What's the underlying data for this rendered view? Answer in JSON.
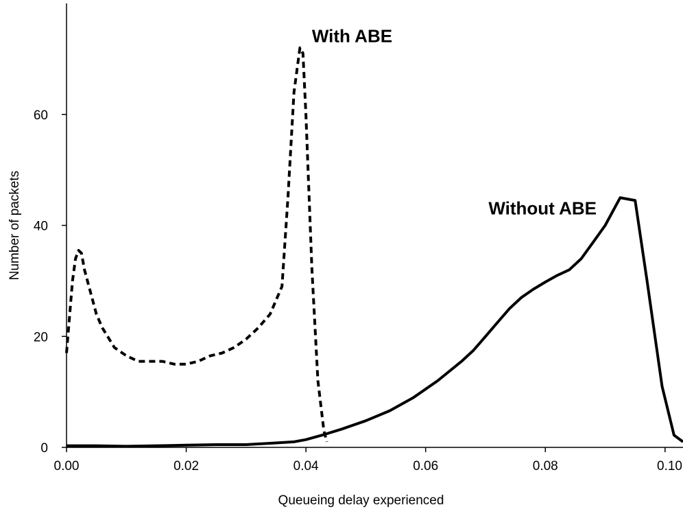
{
  "chart_data": {
    "type": "line",
    "title": "",
    "xlabel": "Queueing delay experienced",
    "ylabel": "Number of packets",
    "xlim": [
      0.0,
      0.103
    ],
    "ylim": [
      0,
      80
    ],
    "x_ticks": [
      0.0,
      0.02,
      0.04,
      0.06,
      0.08,
      0.1
    ],
    "x_tick_labels": [
      "0.00",
      "0.02",
      "0.04",
      "0.06",
      "0.08",
      "0.10"
    ],
    "y_ticks": [
      0,
      20,
      40,
      60
    ],
    "y_tick_labels": [
      "0",
      "20",
      "40",
      "60"
    ],
    "grid": false,
    "legend": "none",
    "series": [
      {
        "name": "With ABE",
        "line_style": "dashed",
        "color": "#000000",
        "x": [
          0.0,
          0.001,
          0.0015,
          0.002,
          0.0025,
          0.003,
          0.004,
          0.005,
          0.006,
          0.008,
          0.01,
          0.012,
          0.014,
          0.016,
          0.018,
          0.02,
          0.022,
          0.024,
          0.026,
          0.028,
          0.03,
          0.032,
          0.034,
          0.036,
          0.037,
          0.038,
          0.039,
          0.0395,
          0.04,
          0.041,
          0.042,
          0.043,
          0.0435
        ],
        "y": [
          17,
          30,
          34,
          35.5,
          35,
          32,
          28,
          24,
          21.5,
          18,
          16.5,
          15.5,
          15.5,
          15.5,
          15,
          15,
          15.5,
          16.5,
          17,
          18,
          19.5,
          21.5,
          24,
          29,
          45,
          64,
          72,
          71,
          60,
          32,
          12,
          3,
          1
        ]
      },
      {
        "name": "Without ABE",
        "line_style": "solid",
        "color": "#000000",
        "x": [
          0.0,
          0.005,
          0.01,
          0.015,
          0.02,
          0.025,
          0.03,
          0.035,
          0.038,
          0.04,
          0.043,
          0.046,
          0.05,
          0.054,
          0.058,
          0.062,
          0.066,
          0.068,
          0.07,
          0.072,
          0.074,
          0.076,
          0.078,
          0.08,
          0.082,
          0.084,
          0.086,
          0.088,
          0.09,
          0.0925,
          0.095,
          0.097,
          0.0995,
          0.1015,
          0.103
        ],
        "y": [
          0.3,
          0.3,
          0.2,
          0.3,
          0.4,
          0.5,
          0.5,
          0.8,
          1.0,
          1.4,
          2.3,
          3.3,
          4.8,
          6.6,
          9.0,
          12.0,
          15.5,
          17.5,
          20.0,
          22.5,
          25.0,
          27.0,
          28.5,
          29.8,
          31.0,
          32.0,
          34.0,
          37.0,
          40.0,
          45.0,
          44.5,
          30.0,
          11.0,
          2.2,
          1.0
        ]
      }
    ],
    "annotations": [
      {
        "text": "With ABE",
        "x": 0.041,
        "y": 72
      },
      {
        "text": "Without ABE",
        "x": 0.0705,
        "y": 41
      }
    ]
  }
}
